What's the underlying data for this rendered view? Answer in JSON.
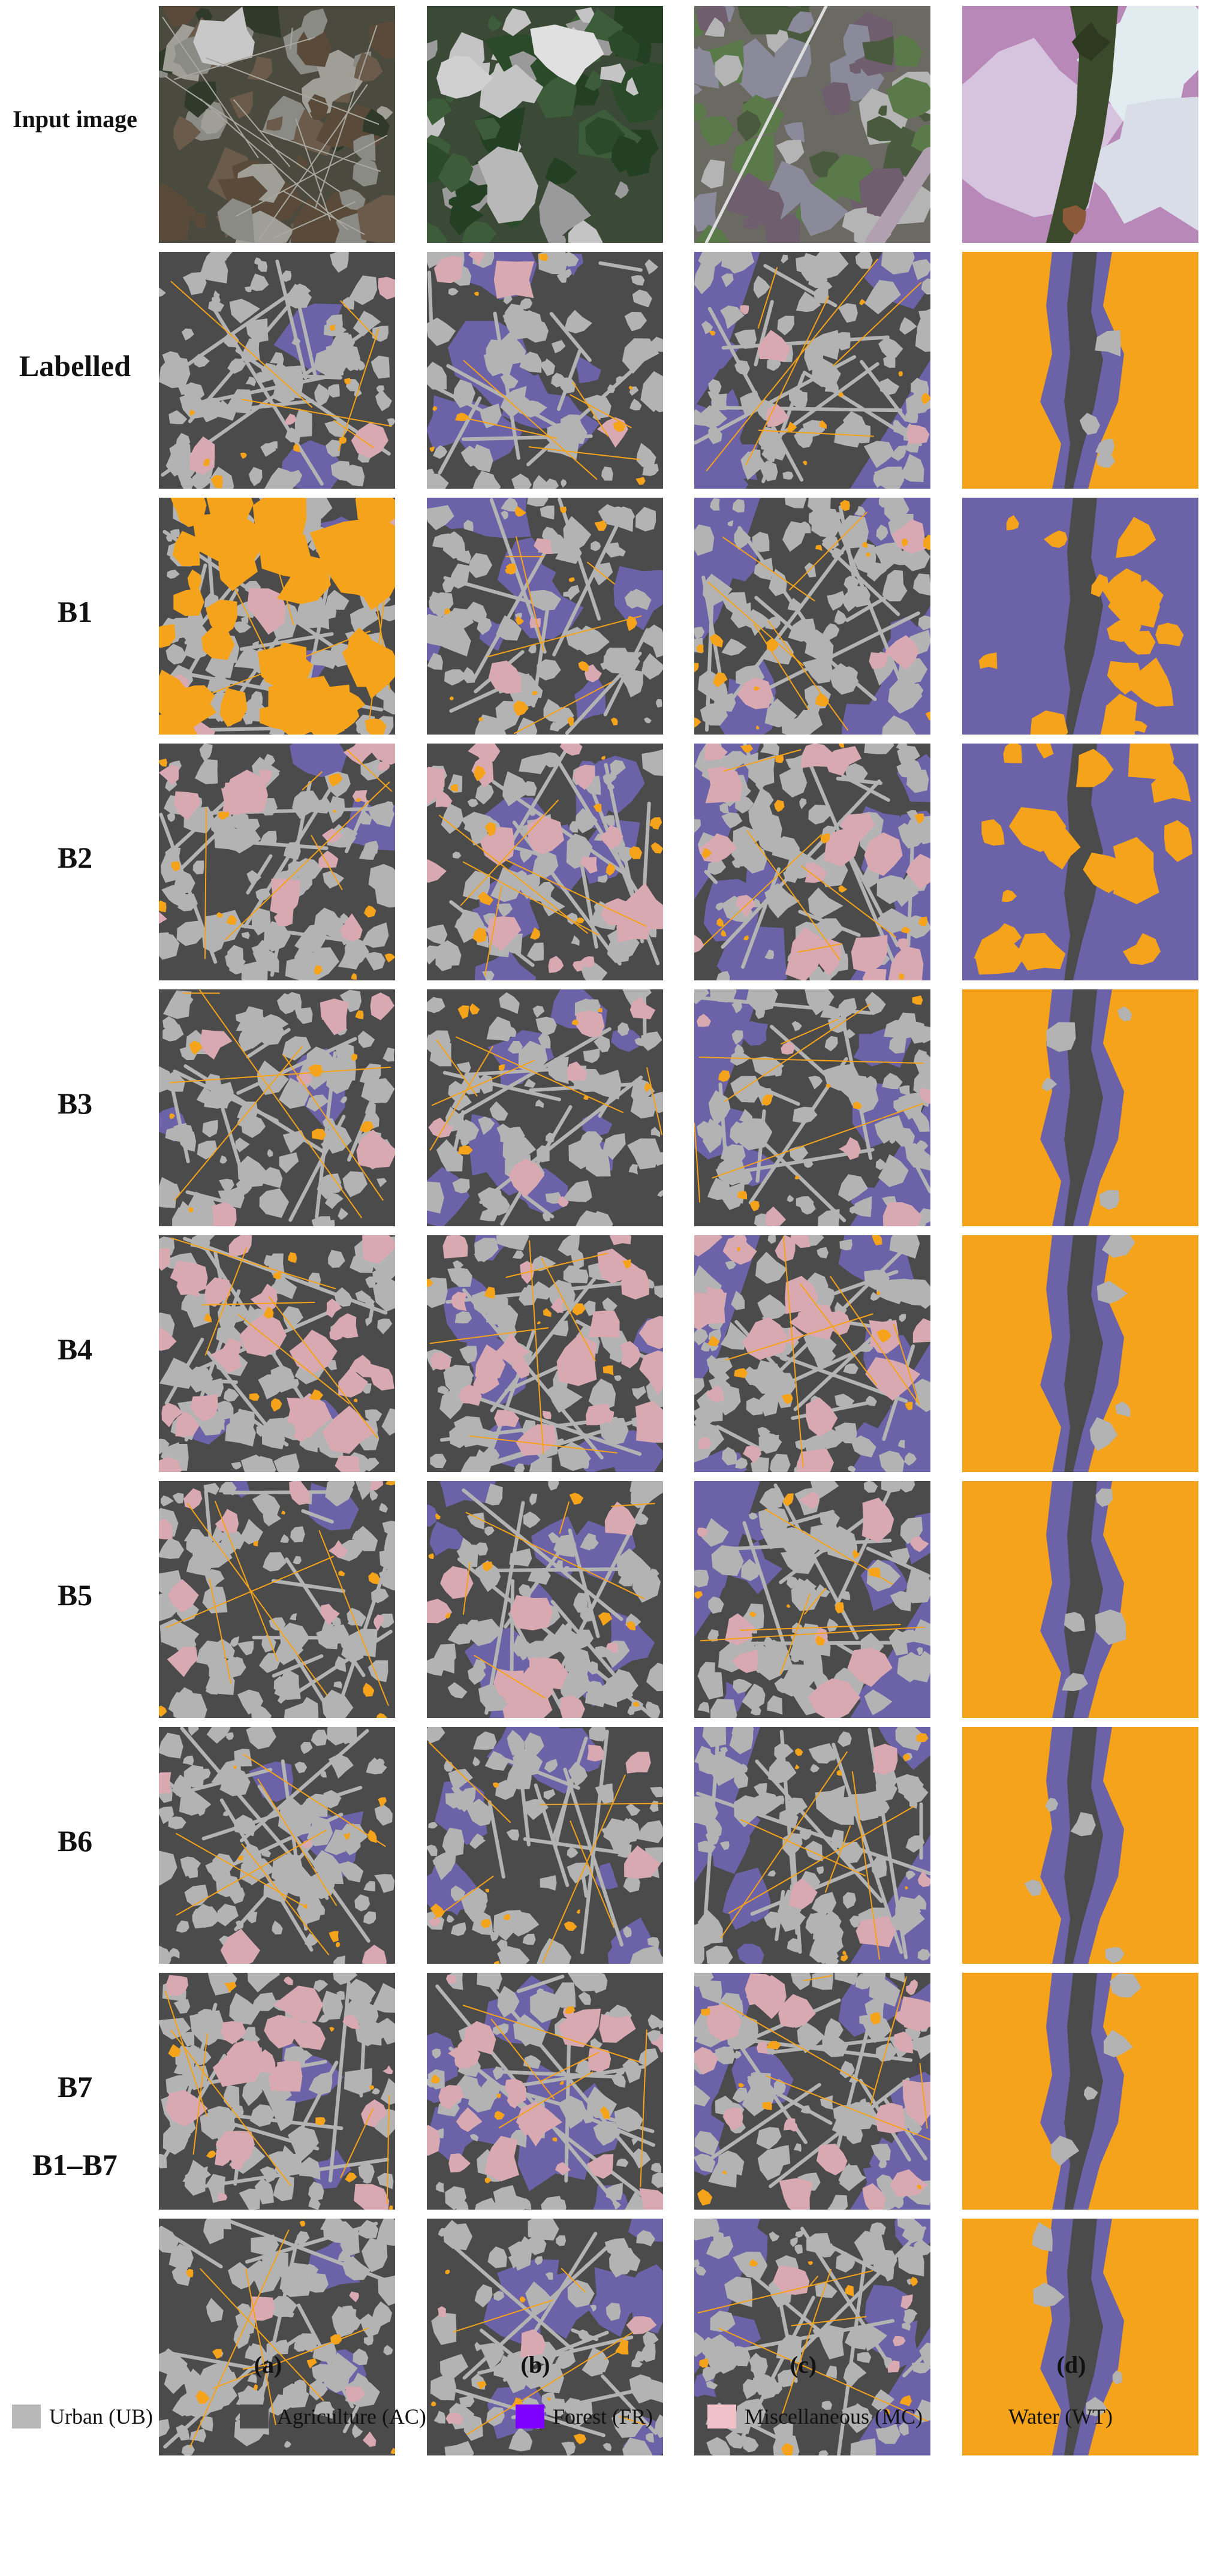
{
  "figure": {
    "column_labels": [
      "(a)",
      "(b)",
      "(c)",
      "(d)"
    ],
    "row_labels": [
      "Input image",
      "Labelled",
      "B1",
      "B2",
      "B3",
      "B4",
      "B5",
      "B6",
      "B7",
      "B1–B7"
    ],
    "legend": [
      {
        "label": "Urban (UB)",
        "color": "#b8b8b8"
      },
      {
        "label": "Agriculture (AC)",
        "color": "#4b4b4b"
      },
      {
        "label": "Forest (FR)",
        "color": "#7f00ff"
      },
      {
        "label": "Miscellaneous (MC)",
        "color": "#f0c0c8"
      },
      {
        "label": "Water (WT)",
        "color": "#f5a31a"
      }
    ],
    "map_colors": {
      "urban": "#b3b3b3",
      "agriculture": "#4b4b4b",
      "forest_rendered": "#6c62a8",
      "misc_rendered": "#d8a9b0",
      "water": "#f5a31a"
    }
  }
}
